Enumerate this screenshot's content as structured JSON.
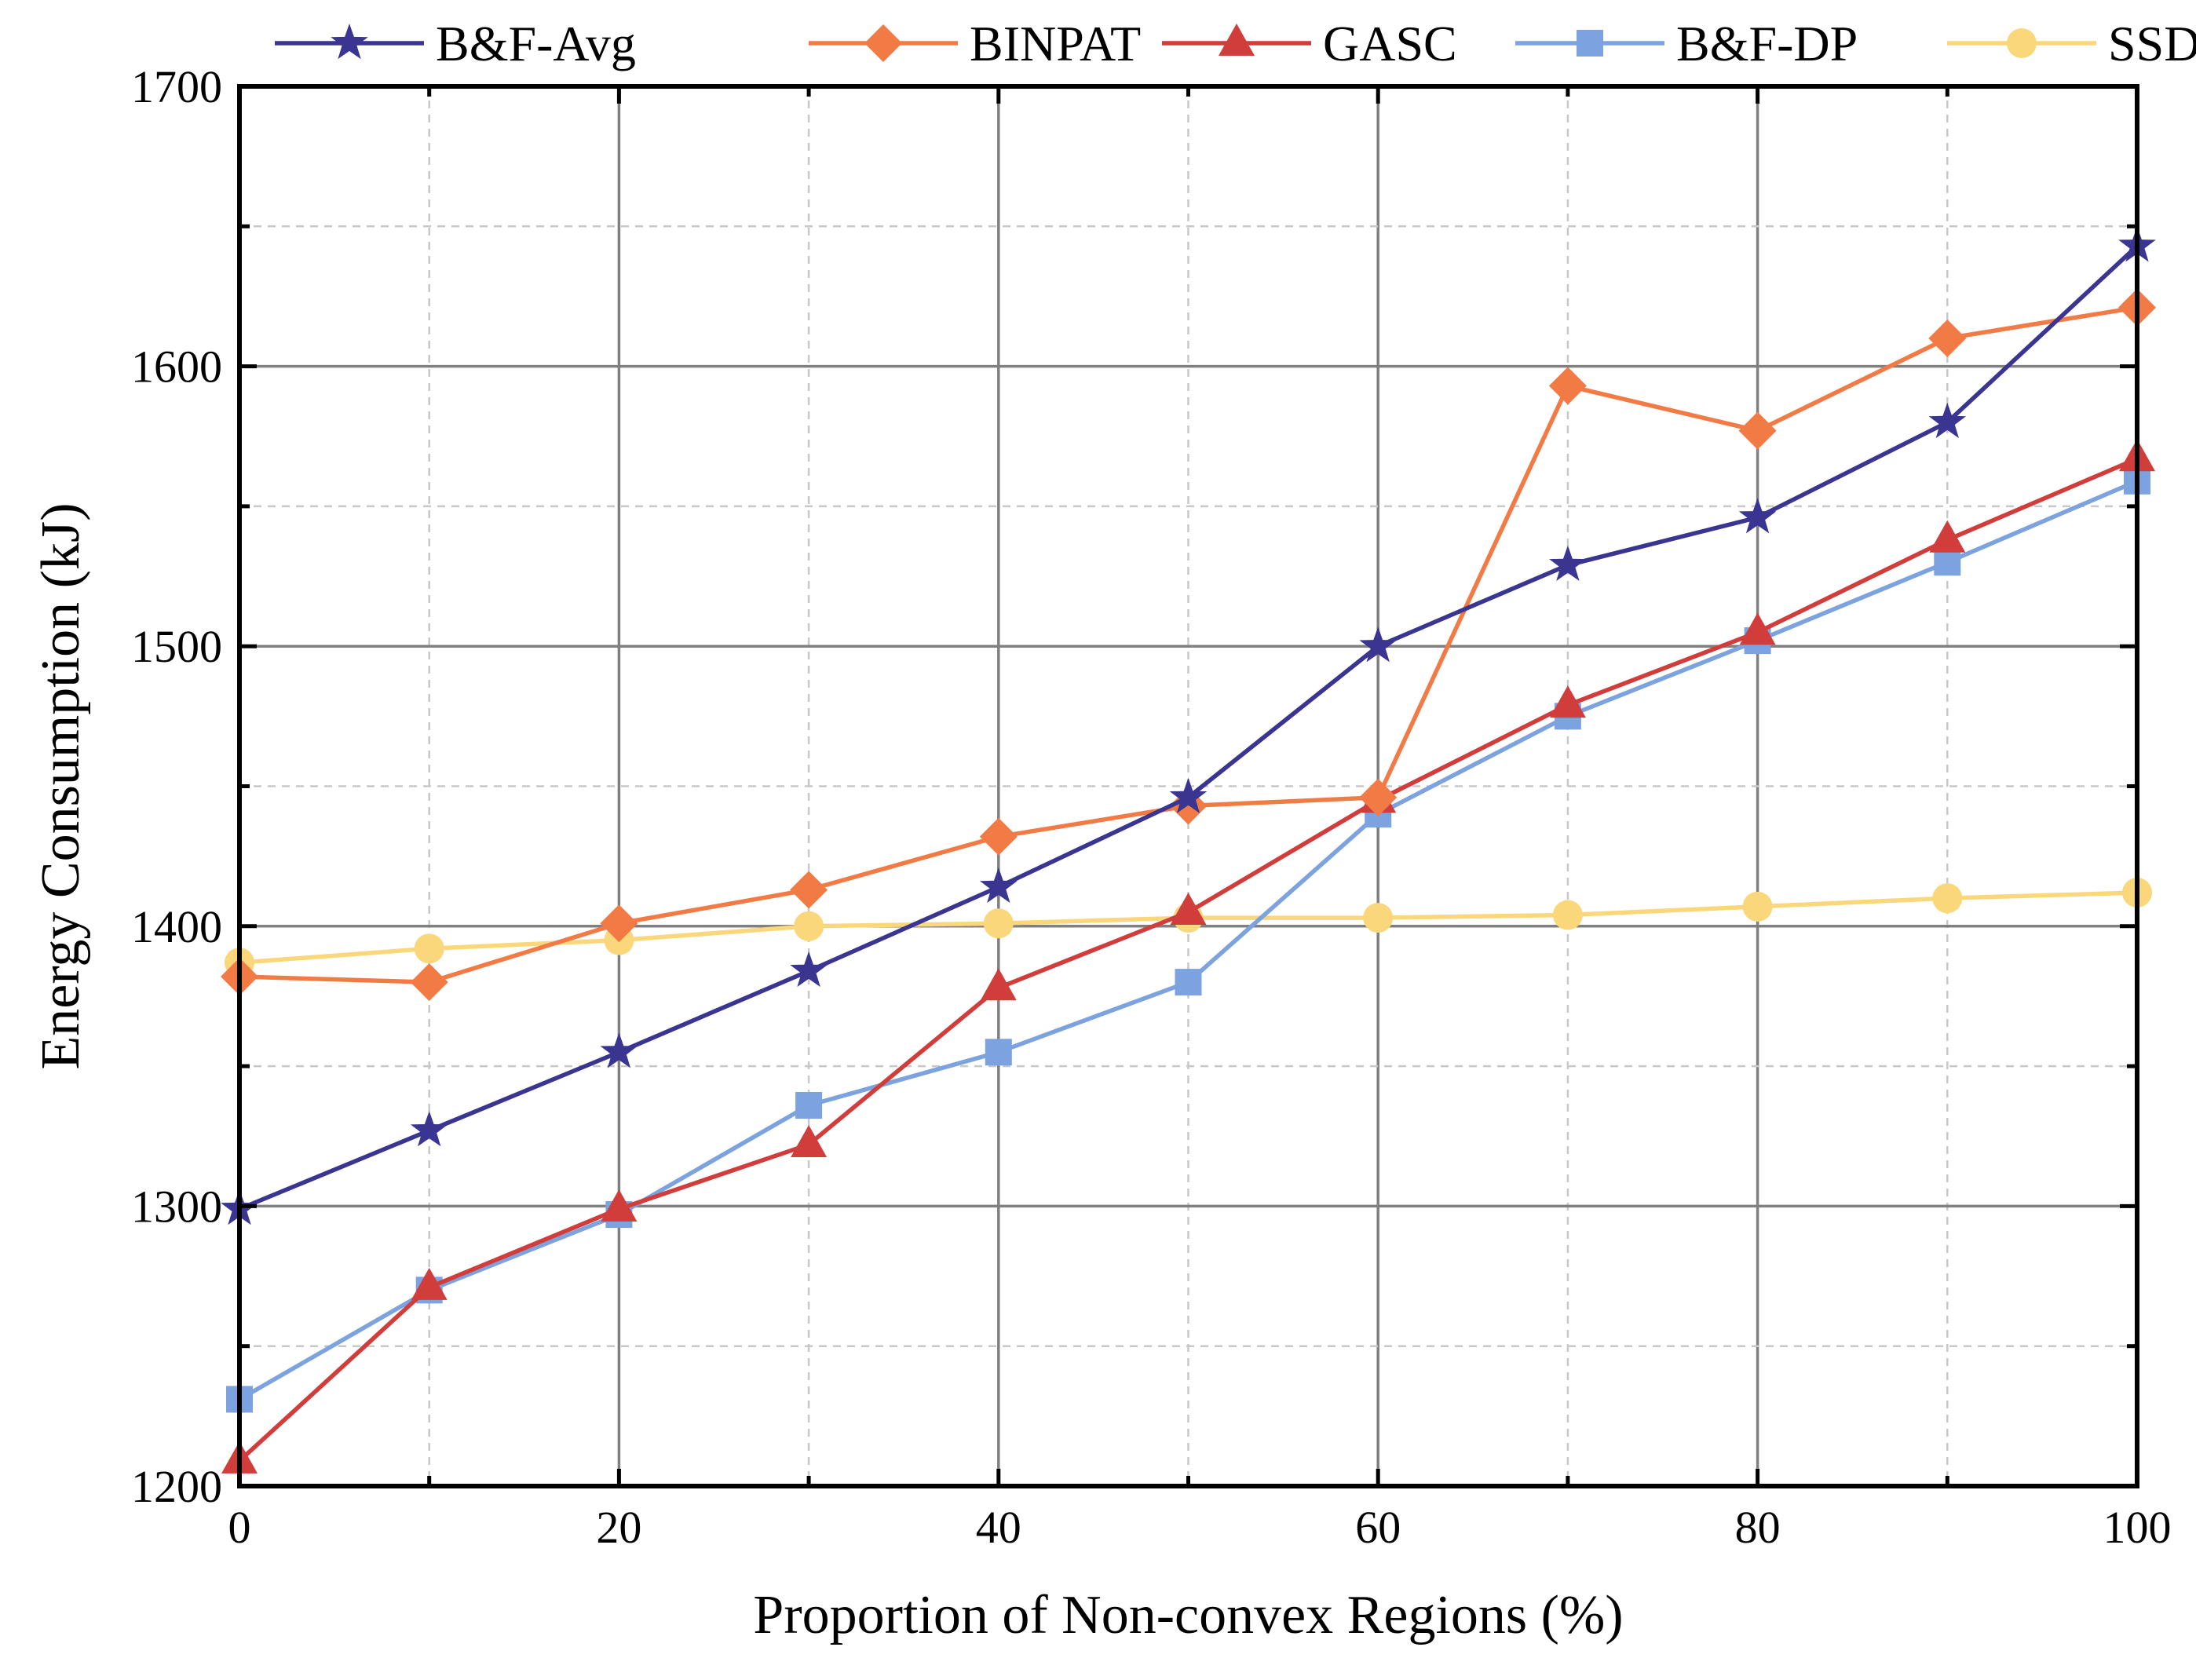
{
  "chart_data": {
    "type": "line",
    "title": "",
    "xlabel": "Proportion of Non-convex Regions (%)",
    "ylabel": "Energy Consumption (kJ)",
    "xlim": [
      0,
      100
    ],
    "ylim": [
      1200,
      1700
    ],
    "x_ticks": [
      0,
      20,
      40,
      60,
      80,
      100
    ],
    "x_tick_labels": [
      "0",
      "20",
      "40",
      "60",
      "80",
      "100"
    ],
    "y_ticks": [
      1200,
      1300,
      1400,
      1500,
      1600,
      1700
    ],
    "y_tick_labels": [
      "1200",
      "1300",
      "1400",
      "1500",
      "1600",
      "1700"
    ],
    "grid": true,
    "legend_position": "top",
    "x": [
      0,
      10,
      20,
      30,
      40,
      50,
      60,
      70,
      80,
      90,
      100
    ],
    "series": [
      {
        "name": "B&F-Avg",
        "marker": "star",
        "color": "#3b3592",
        "values": [
          1299,
          1327,
          1355,
          1384,
          1414,
          1446,
          1500,
          1529,
          1546,
          1580,
          1643
        ]
      },
      {
        "name": "BINPAT",
        "marker": "diamond",
        "color": "#f27a45",
        "values": [
          1382,
          1380,
          1401,
          1413,
          1432,
          1443,
          1446,
          1593,
          1577,
          1610,
          1621
        ]
      },
      {
        "name": "GASC",
        "marker": "triangle",
        "color": "#d13d3b",
        "values": [
          1209,
          1271,
          1299,
          1322,
          1378,
          1405,
          1445,
          1479,
          1505,
          1538,
          1567
        ]
      },
      {
        "name": "B&F-DP",
        "marker": "square",
        "color": "#7ca2e0",
        "values": [
          1231,
          1270,
          1297,
          1336,
          1355,
          1380,
          1440,
          1475,
          1502,
          1530,
          1559
        ]
      },
      {
        "name": "SSDP",
        "marker": "circle",
        "color": "#fad77b",
        "values": [
          1387,
          1392,
          1395,
          1400,
          1401,
          1403,
          1403,
          1404,
          1407,
          1410,
          1412
        ]
      }
    ]
  }
}
